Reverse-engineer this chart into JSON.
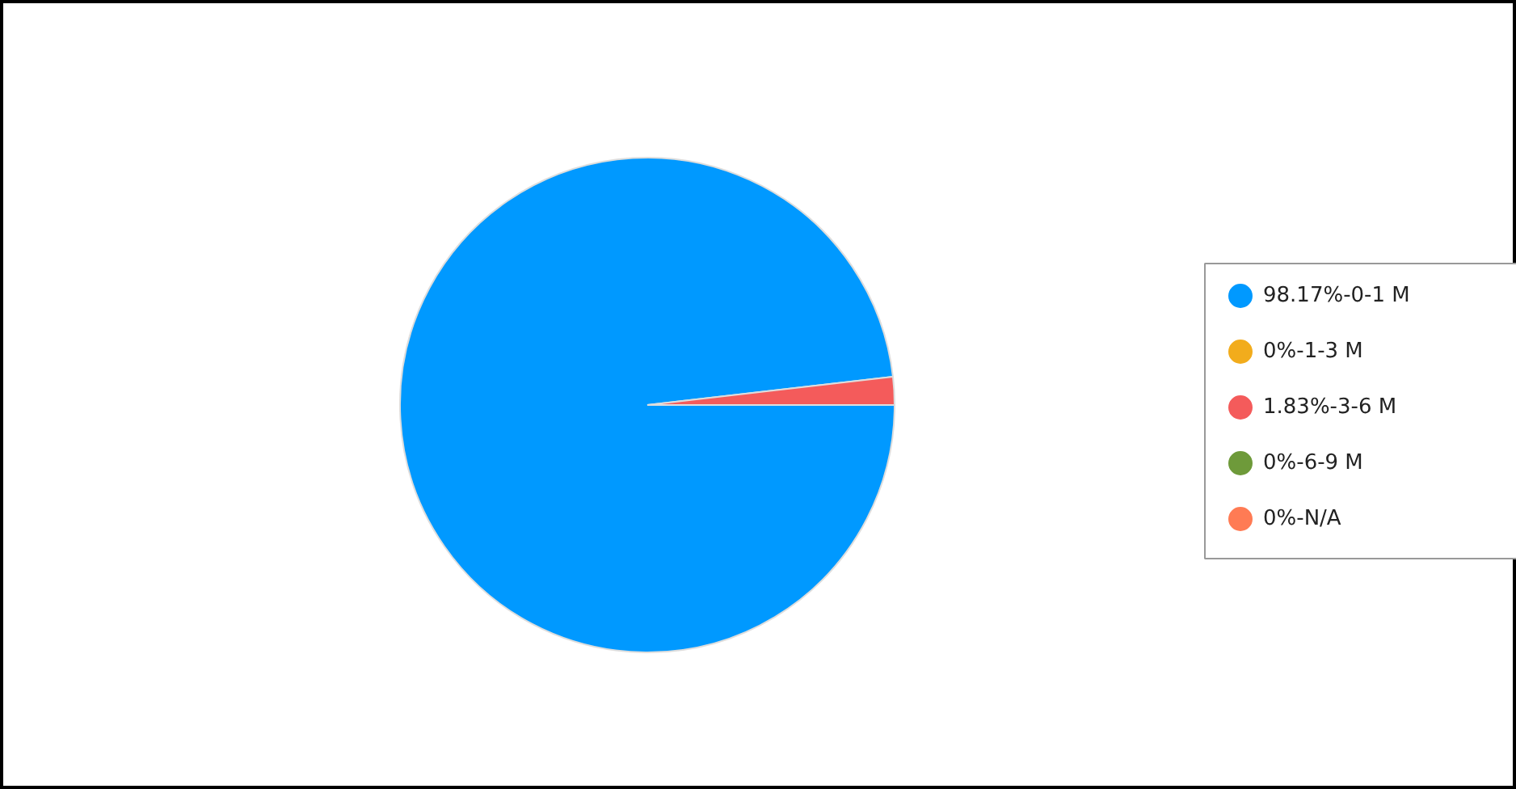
{
  "chart_data": {
    "type": "pie",
    "categories": [
      "98.17%-0-1 M",
      "0%-1-3 M",
      "1.83%-3-6 M",
      "0%-6-9 M",
      "0%-N/A"
    ],
    "values": [
      98.17,
      0,
      1.83,
      0,
      0
    ],
    "colors": [
      "#0099ff",
      "#f2ac1c",
      "#f45b5b",
      "#6e9a3a",
      "#ff7b54"
    ],
    "legend": "right"
  }
}
